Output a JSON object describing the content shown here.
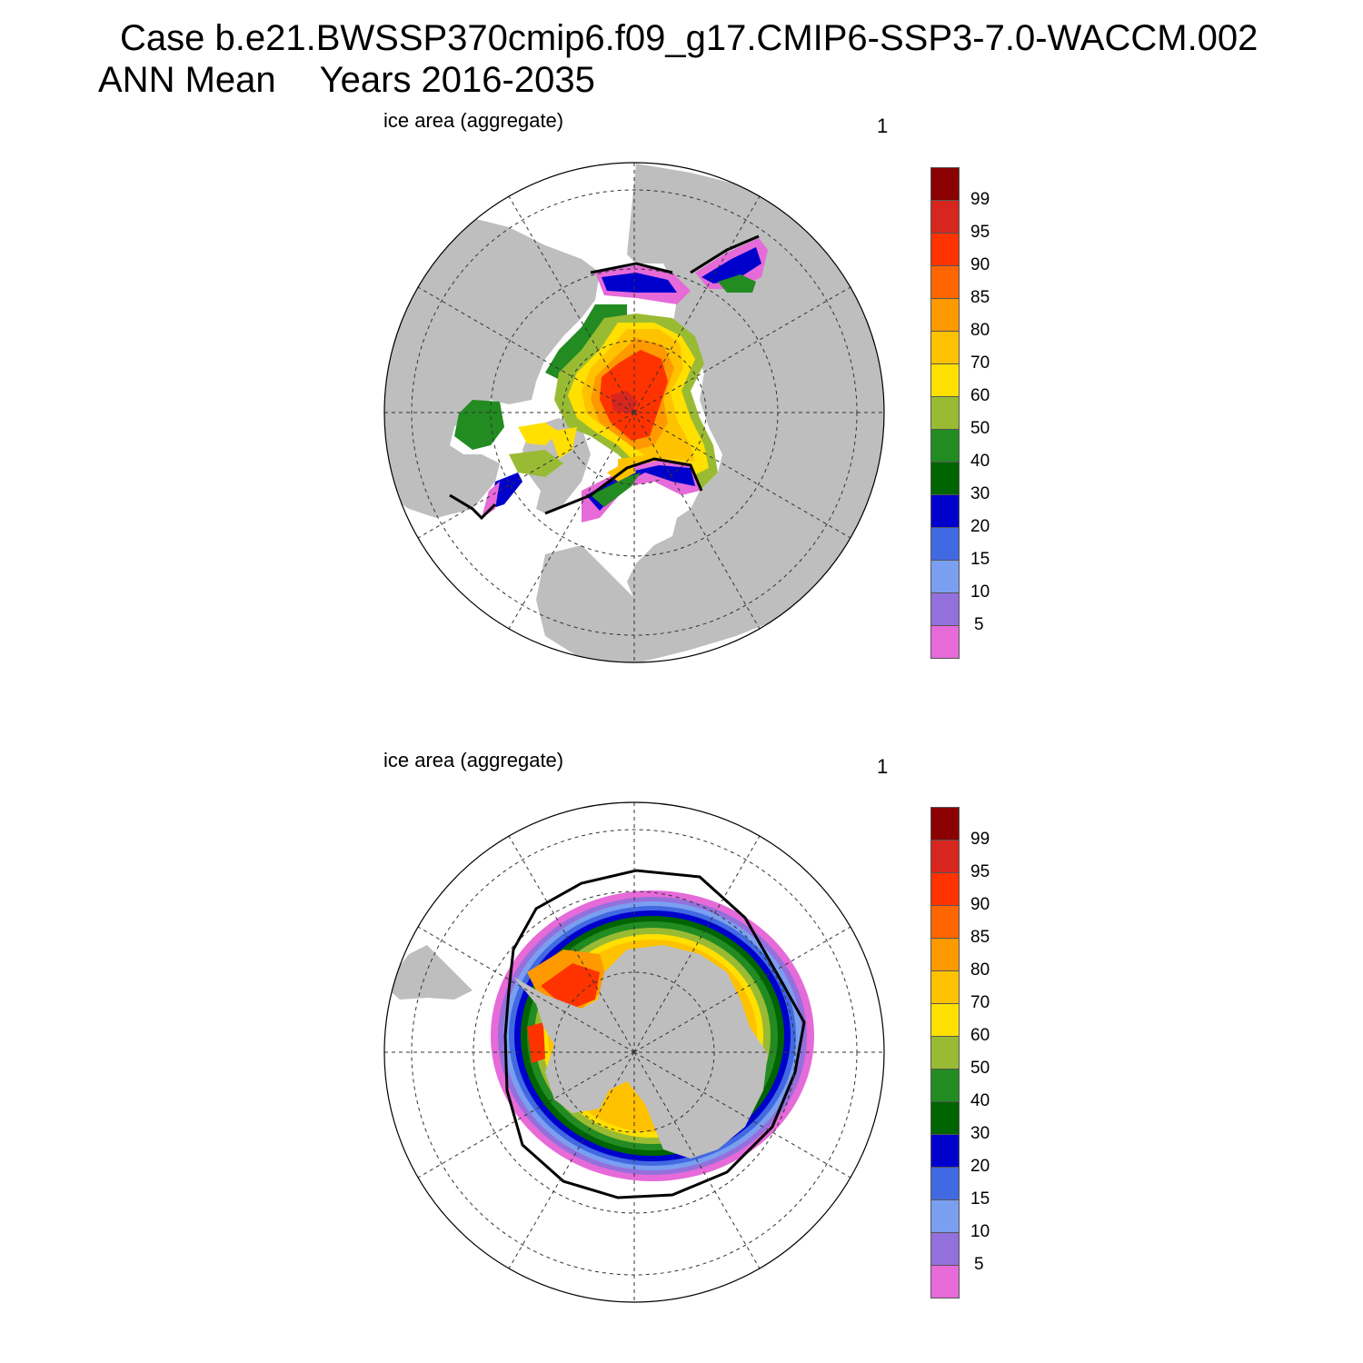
{
  "header": {
    "case_line": "Case b.e21.BWSSP370cmip6.f09_g17.CMIP6-SSP3-7.0-WACCM.002",
    "mean_label": "ANN Mean",
    "years_label": "Years 2016-2035"
  },
  "panels": [
    {
      "hemisphere": "north",
      "label": "ice area  (aggregate)",
      "number": "1"
    },
    {
      "hemisphere": "south",
      "label": "ice area  (aggregate)",
      "number": "1"
    }
  ],
  "colorbar": {
    "labels": [
      "99",
      "95",
      "90",
      "85",
      "80",
      "70",
      "60",
      "50",
      "40",
      "30",
      "20",
      "15",
      "10",
      "5"
    ],
    "colors": [
      "#8b0000",
      "#d7261e",
      "#ff3300",
      "#ff6600",
      "#ff9900",
      "#ffc200",
      "#ffe000",
      "#99bb33",
      "#228b22",
      "#006400",
      "#0000cc",
      "#4169e1",
      "#7b9ff0",
      "#9370db",
      "#e66ad8"
    ]
  },
  "map_style": {
    "land": "#bebebe",
    "ocean": "#ffffff",
    "ice_edge": "#000000"
  }
}
